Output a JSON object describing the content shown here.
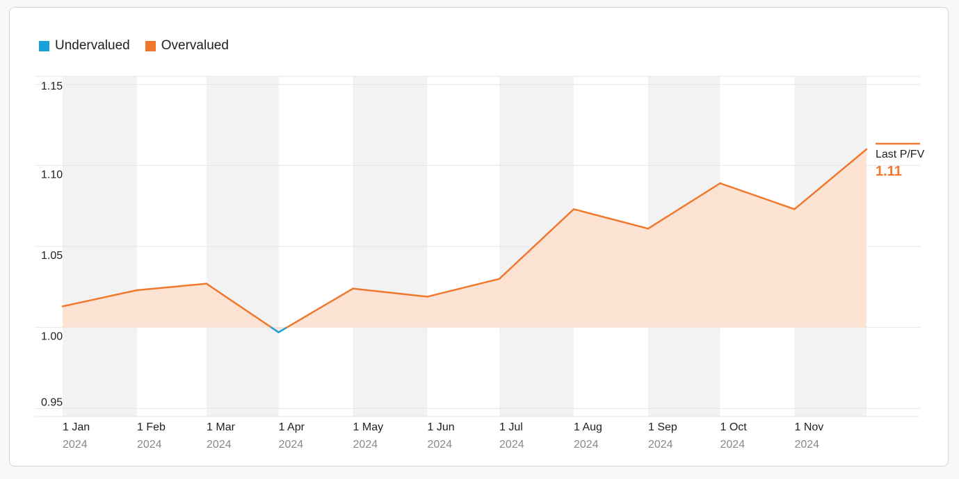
{
  "legend": [
    {
      "label": "Undervalued",
      "color": "#1aa0d8"
    },
    {
      "label": "Overvalued",
      "color": "#f0782d"
    }
  ],
  "last": {
    "label": "Last P/FV",
    "value": "1.11"
  },
  "chart_data": {
    "type": "area",
    "categories": [
      "1 Jan",
      "1 Feb",
      "1 Mar",
      "1 Apr",
      "1 May",
      "1 Jun",
      "1 Jul",
      "1 Aug",
      "1 Sep",
      "1 Oct",
      "1 Nov"
    ],
    "year_labels": [
      "2024",
      "2024",
      "2024",
      "2024",
      "2024",
      "2024",
      "2024",
      "2024",
      "2024",
      "2024",
      "2024"
    ],
    "x": [
      "2024-01-01",
      "2024-02-01",
      "2024-03-01",
      "2024-03-31",
      "2024-05-01",
      "2024-06-01",
      "2024-07-01",
      "2024-08-01",
      "2024-09-01",
      "2024-10-01",
      "2024-11-01",
      "2024-12-01"
    ],
    "values": [
      1.013,
      1.023,
      1.027,
      0.997,
      1.024,
      1.019,
      1.03,
      1.073,
      1.061,
      1.089,
      1.073,
      1.11
    ],
    "baseline": 1.0,
    "yticks": [
      0.95,
      1.0,
      1.05,
      1.1,
      1.15
    ],
    "ylim": [
      0.945,
      1.155
    ],
    "colors": {
      "over": "#f0782d",
      "under": "#1aa0d8",
      "over_fill": "#fde0cf",
      "band": "#f2f2f2",
      "grid": "#e6e6e6"
    }
  }
}
